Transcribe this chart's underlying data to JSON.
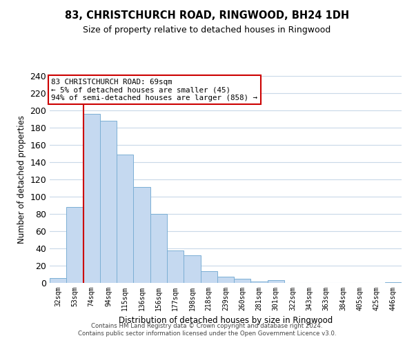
{
  "title": "83, CHRISTCHURCH ROAD, RINGWOOD, BH24 1DH",
  "subtitle": "Size of property relative to detached houses in Ringwood",
  "xlabel": "Distribution of detached houses by size in Ringwood",
  "ylabel": "Number of detached properties",
  "bar_labels": [
    "32sqm",
    "53sqm",
    "74sqm",
    "94sqm",
    "115sqm",
    "136sqm",
    "156sqm",
    "177sqm",
    "198sqm",
    "218sqm",
    "239sqm",
    "260sqm",
    "281sqm",
    "301sqm",
    "322sqm",
    "343sqm",
    "363sqm",
    "384sqm",
    "405sqm",
    "425sqm",
    "446sqm"
  ],
  "bar_heights": [
    6,
    88,
    196,
    188,
    149,
    111,
    80,
    38,
    32,
    14,
    7,
    5,
    2,
    3,
    0,
    0,
    0,
    0,
    0,
    0,
    1
  ],
  "bar_color": "#c5d9f0",
  "bar_edge_color": "#7bafd4",
  "vline_color": "#cc0000",
  "ylim": [
    0,
    240
  ],
  "yticks": [
    0,
    20,
    40,
    60,
    80,
    100,
    120,
    140,
    160,
    180,
    200,
    220,
    240
  ],
  "annotation_title": "83 CHRISTCHURCH ROAD: 69sqm",
  "annotation_line1": "← 5% of detached houses are smaller (45)",
  "annotation_line2": "94% of semi-detached houses are larger (858) →",
  "annotation_box_color": "#ffffff",
  "annotation_box_edge": "#cc0000",
  "footer_line1": "Contains HM Land Registry data © Crown copyright and database right 2024.",
  "footer_line2": "Contains public sector information licensed under the Open Government Licence v3.0.",
  "bg_color": "#ffffff",
  "grid_color": "#c8d8e8"
}
